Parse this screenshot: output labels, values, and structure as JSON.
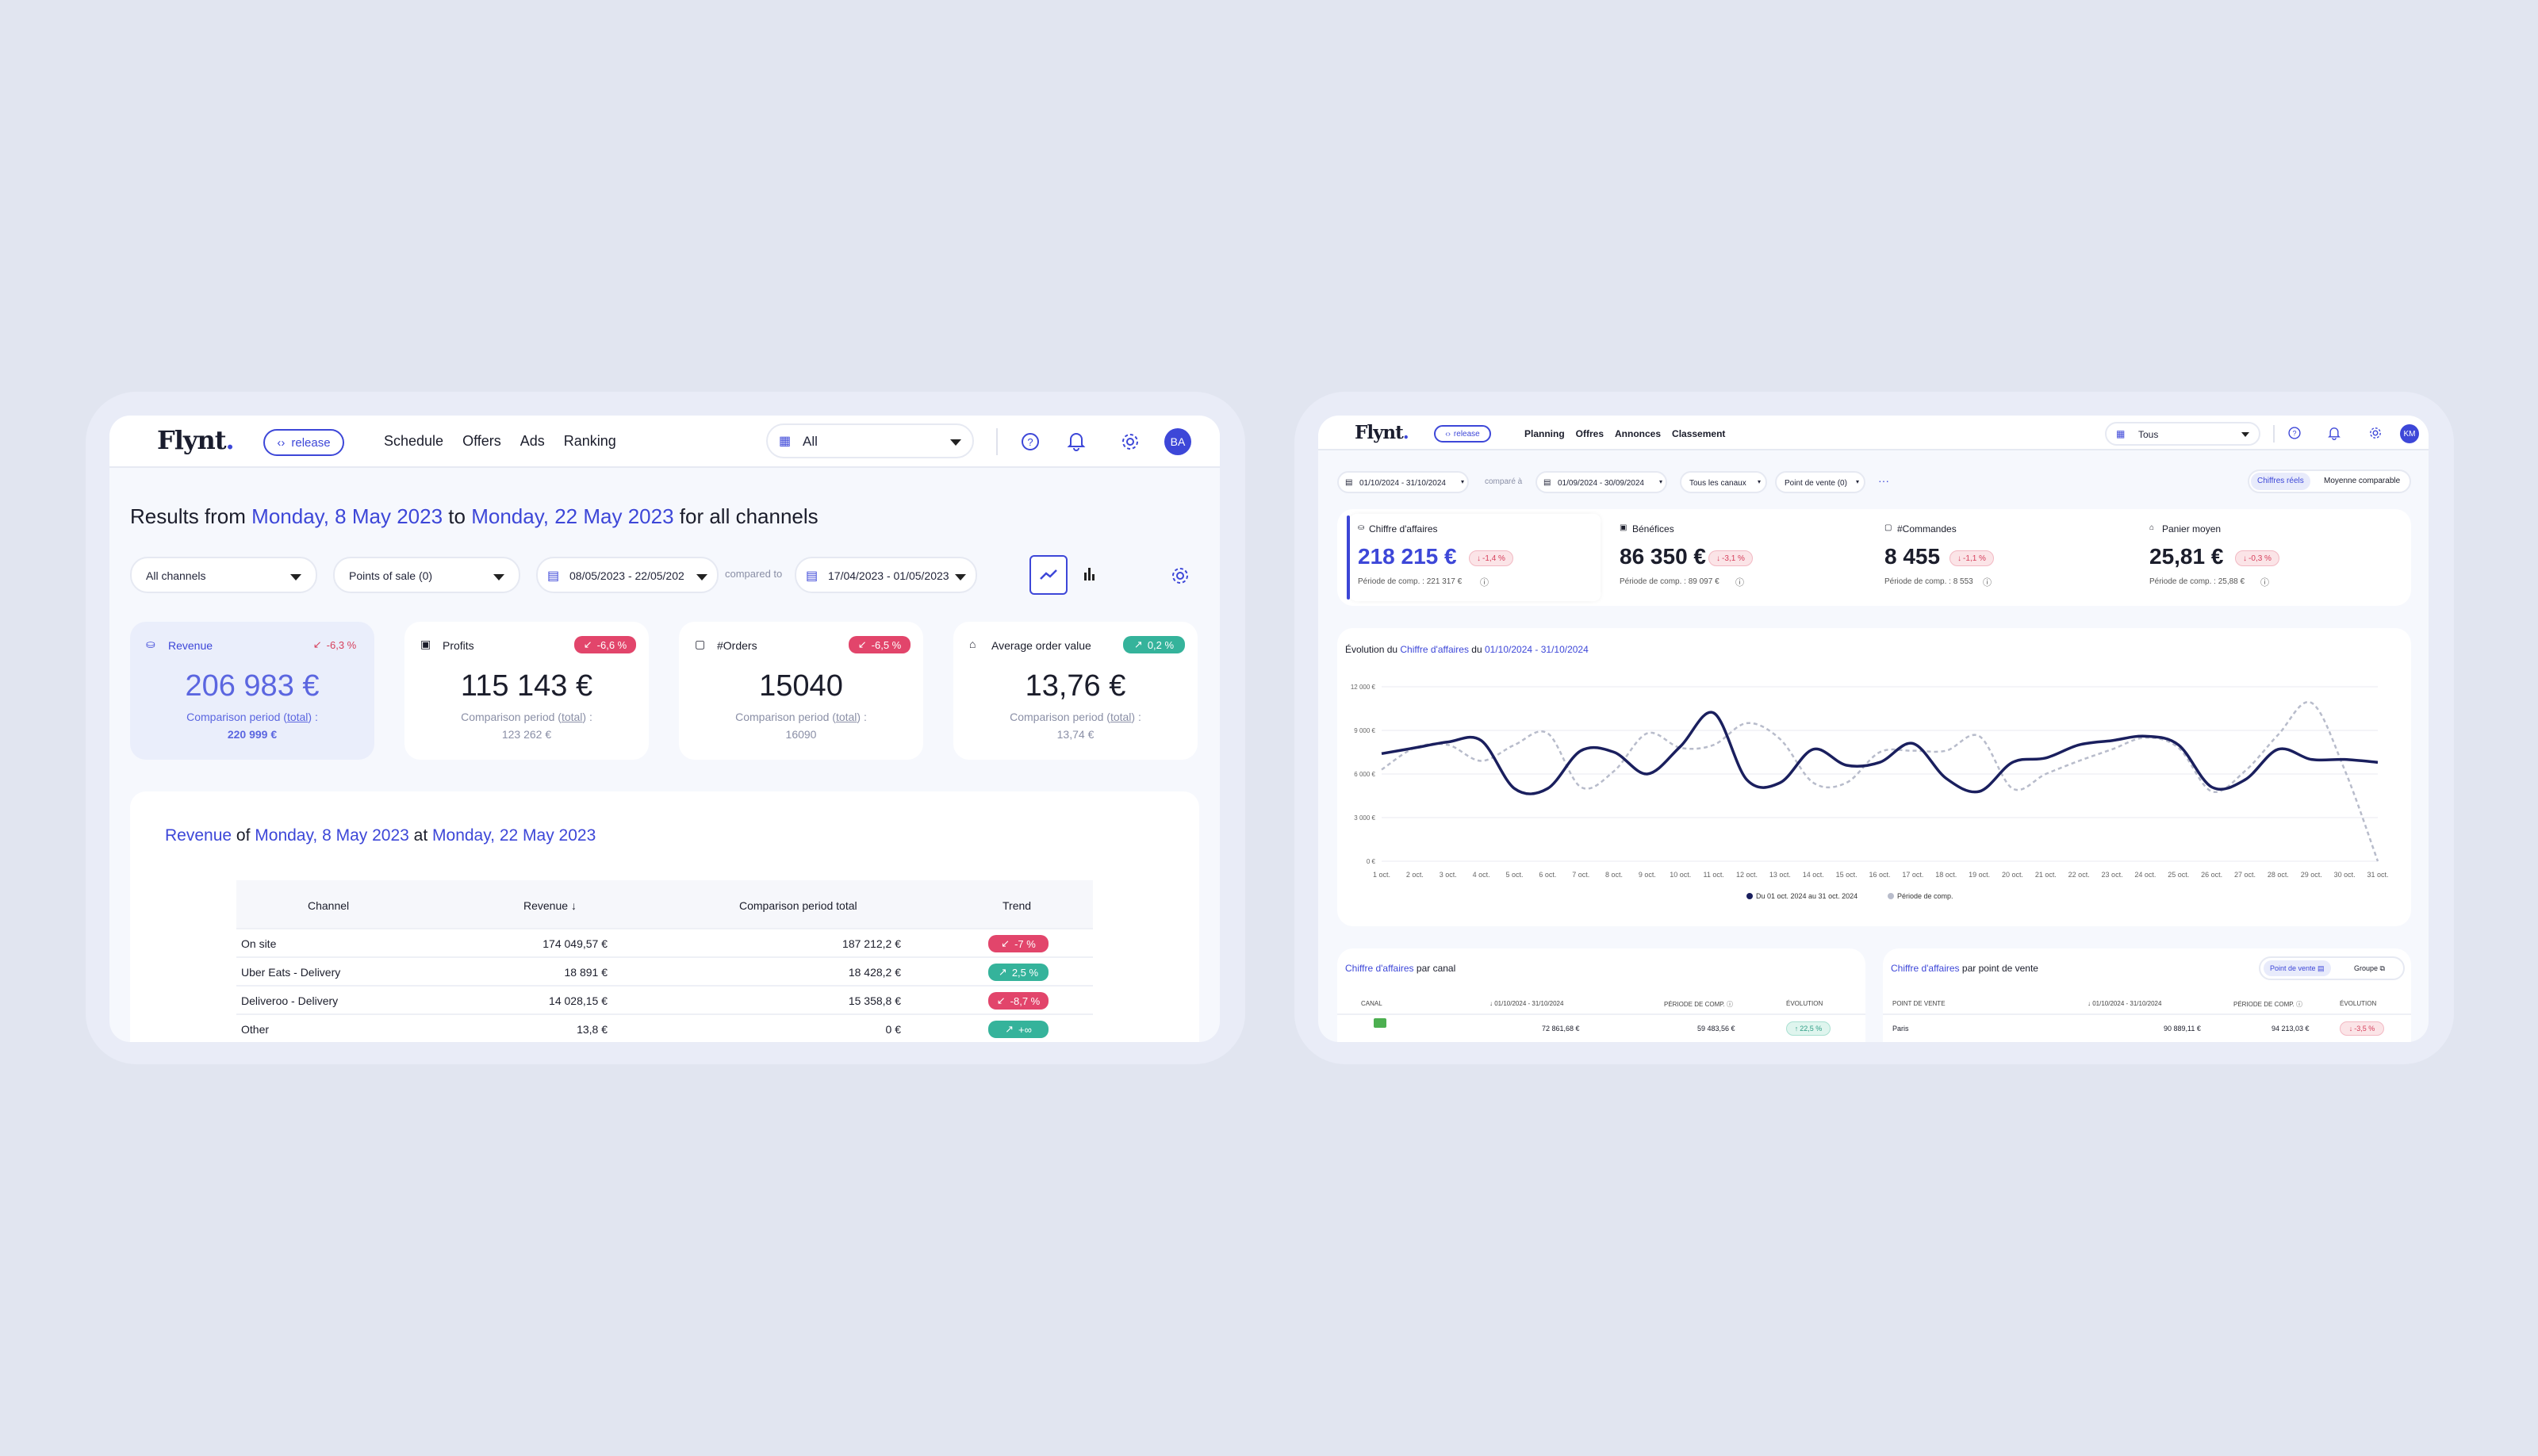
{
  "left": {
    "logo": "Flynt",
    "release_label": "release",
    "nav": [
      "Schedule",
      "Offers",
      "Ads",
      "Ranking"
    ],
    "scope_select": "All",
    "avatar": "BA",
    "title": {
      "prefix": "Results from",
      "start": "Monday, 8 May 2023",
      "mid": "to",
      "end": "Monday, 22 May 2023",
      "suffix": "for all channels"
    },
    "filters": {
      "channels": "All channels",
      "pos": "Points of sale (0)",
      "period": "08/05/2023 - 22/05/202",
      "compared": "compared to",
      "comp_period": "17/04/2023 - 01/05/2023"
    },
    "kpis": [
      {
        "label": "Revenue",
        "badge": "-6,3 %",
        "value": "206 983 €",
        "comp_a": "Comparison period (",
        "comp_link": "total",
        "comp_b": ") :",
        "comp_value": "220 999 €"
      },
      {
        "label": "Profits",
        "badge": "-6,6 %",
        "value": "115 143 €",
        "comp_a": "Comparison period (",
        "comp_link": "total",
        "comp_b": ") :",
        "comp_value": "123 262 €"
      },
      {
        "label": "#Orders",
        "badge": "-6,5 %",
        "value": "15040",
        "comp_a": "Comparison period (",
        "comp_link": "total",
        "comp_b": ") :",
        "comp_value": "16090"
      },
      {
        "label": "Average order value",
        "badge": "0,2 %",
        "value": "13,76 €",
        "comp_a": "Comparison period (",
        "comp_link": "total",
        "comp_b": ") :",
        "comp_value": "13,74 €"
      }
    ],
    "table_title": {
      "metric": "Revenue",
      "of": "of",
      "start": "Monday, 8 May 2023",
      "at": "at",
      "end": "Monday, 22 May 2023"
    },
    "table_headers": [
      "Channel",
      "Revenue",
      "Comparison period total",
      "Trend"
    ],
    "table_rows": [
      {
        "channel": "On site",
        "revenue": "174 049,57 €",
        "comp": "187 212,2 €",
        "trend": "-7 %",
        "dir": "down"
      },
      {
        "channel": "Uber Eats - Delivery",
        "revenue": "18 891 €",
        "comp": "18 428,2 €",
        "trend": "2,5 %",
        "dir": "up"
      },
      {
        "channel": "Deliveroo - Delivery",
        "revenue": "14 028,15 €",
        "comp": "15 358,8 €",
        "trend": "-8,7 %",
        "dir": "down"
      },
      {
        "channel": "Other",
        "revenue": "13,8 €",
        "comp": "0 €",
        "trend": "+∞",
        "dir": "up"
      }
    ]
  },
  "right": {
    "logo": "Flynt",
    "release_label": "release",
    "nav": [
      "Planning",
      "Offres",
      "Annonces",
      "Classement"
    ],
    "scope_select": "Tous",
    "avatar": "KM",
    "filters": {
      "period": "01/10/2024 - 31/10/2024",
      "compared": "comparé à",
      "comp_period": "01/09/2024 - 30/09/2024",
      "channels": "Tous les canaux",
      "pos": "Point de vente (0)",
      "more": "···"
    },
    "toggle": [
      "Chiffres réels",
      "Moyenne comparable"
    ],
    "kpis": [
      {
        "label": "Chiffre d'affaires",
        "value": "218 215 €",
        "badge": "-1,4 %",
        "comp": "Période de comp. : 221 317 €"
      },
      {
        "label": "Bénéfices",
        "value": "86 350 €",
        "badge": "-3,1 %",
        "comp": "Période de comp. : 89 097 €"
      },
      {
        "label": "#Commandes",
        "value": "8 455",
        "badge": "-1,1 %",
        "comp": "Période de comp. : 8 553"
      },
      {
        "label": "Panier moyen",
        "value": "25,81 €",
        "badge": "-0,3 %",
        "comp": "Période de comp. : 25,88 €"
      }
    ],
    "chart_title": {
      "prefix": "Évolution du",
      "metric": "Chiffre d'affaires",
      "du": "du",
      "range": "01/10/2024 - 31/10/2024"
    },
    "panel1": {
      "metric": "Chiffre d'affaires",
      "rest": "par canal",
      "headers": [
        "CANAL",
        "01/10/2024 - 31/10/2024",
        "PÉRIODE DE COMP.",
        "ÉVOLUTION"
      ],
      "row": {
        "value": "72 861,68 €",
        "comp": "59 483,56 €",
        "evo": "22,5 %"
      }
    },
    "panel2": {
      "metric": "Chiffre d'affaires",
      "rest": "par point de vente",
      "tabs": [
        "Point de vente",
        "Groupe"
      ],
      "headers": [
        "POINT DE VENTE",
        "01/10/2024 - 31/10/2024",
        "PÉRIODE DE COMP.",
        "ÉVOLUTION"
      ],
      "row": {
        "name": "Paris",
        "value": "90 889,11 €",
        "comp": "94 213,03 €",
        "evo": "-3,5 %"
      }
    }
  },
  "chart_data": {
    "type": "line",
    "title": "Évolution du Chiffre d'affaires du 01/10/2024 - 31/10/2024",
    "x": [
      "1 oct.",
      "2 oct.",
      "3 oct.",
      "4 oct.",
      "5 oct.",
      "6 oct.",
      "7 oct.",
      "8 oct.",
      "9 oct.",
      "10 oct.",
      "11 oct.",
      "12 oct.",
      "13 oct.",
      "14 oct.",
      "15 oct.",
      "16 oct.",
      "17 oct.",
      "18 oct.",
      "19 oct.",
      "20 oct.",
      "21 oct.",
      "22 oct.",
      "23 oct.",
      "24 oct.",
      "25 oct.",
      "26 oct.",
      "27 oct.",
      "28 oct.",
      "29 oct.",
      "30 oct.",
      "31 oct."
    ],
    "yticks": [
      "0 €",
      "3 000 €",
      "6 000 €",
      "9 000 €",
      "12 000 €"
    ],
    "ylim": [
      0,
      12000
    ],
    "series": [
      {
        "name": "Du 01 oct. 2024 au 31 oct. 2024",
        "color": "#1a1f5e",
        "style": "solid",
        "values": [
          7400,
          7800,
          8200,
          8300,
          5000,
          5000,
          7600,
          7500,
          6000,
          7900,
          10200,
          5600,
          5400,
          7700,
          6600,
          6800,
          8100,
          5700,
          4800,
          6800,
          7100,
          8000,
          8300,
          8600,
          8000,
          5100,
          5600,
          7700,
          7000,
          7000,
          6800
        ]
      },
      {
        "name": "Période de comp.",
        "color": "#b8bccb",
        "style": "dashed",
        "values": [
          6300,
          7800,
          8000,
          6900,
          8000,
          8800,
          5100,
          6200,
          8800,
          7800,
          8000,
          9500,
          8400,
          5400,
          5400,
          7500,
          7600,
          7600,
          8600,
          5000,
          6000,
          6900,
          7700,
          8500,
          7800,
          4800,
          6200,
          8700,
          10900,
          6300,
          0
        ]
      }
    ]
  },
  "colors": {
    "accent": "#3d47d8",
    "red": "#e2456b",
    "green": "#35b39b",
    "navy": "#1a1f5e"
  }
}
